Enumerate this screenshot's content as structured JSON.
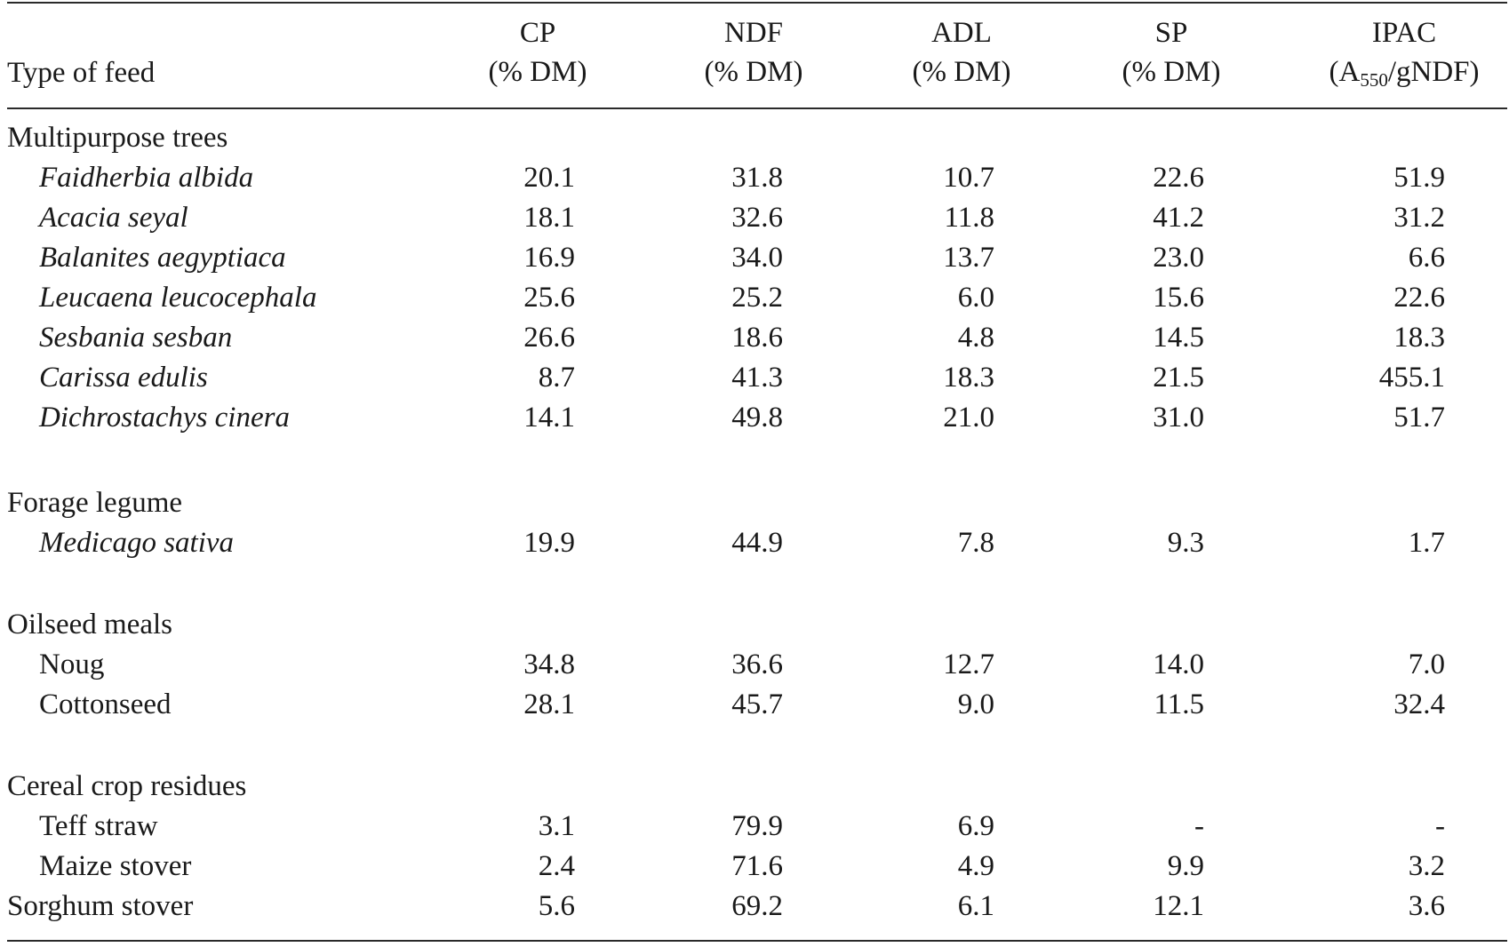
{
  "table": {
    "headers": {
      "type": "Type of feed",
      "cp": {
        "line1": "CP",
        "line2": "(% DM)"
      },
      "ndf": {
        "line1": "NDF",
        "line2": "(% DM)"
      },
      "adl": {
        "line1": "ADL",
        "line2": "(% DM)"
      },
      "sp": {
        "line1": "SP",
        "line2": "(% DM)"
      },
      "ipac": {
        "line1": "IPAC",
        "line2_pre": "(A",
        "line2_sub": "550",
        "line2_post": "/gNDF)"
      }
    },
    "rows": [
      {
        "name": "Multipurpose trees",
        "kind": "group",
        "italic": false,
        "cp": "",
        "ndf": "",
        "adl": "",
        "sp": "",
        "ipac": ""
      },
      {
        "name": "Faidherbia albida",
        "kind": "indent",
        "italic": true,
        "cp": "20.1",
        "ndf": "31.8",
        "adl": "10.7",
        "sp": "22.6",
        "ipac": "51.9"
      },
      {
        "name": "Acacia seyal",
        "kind": "indent",
        "italic": true,
        "cp": "18.1",
        "ndf": "32.6",
        "adl": "11.8",
        "sp": "41.2",
        "ipac": "31.2"
      },
      {
        "name": "Balanites aegyptiaca",
        "kind": "indent",
        "italic": true,
        "cp": "16.9",
        "ndf": "34.0",
        "adl": "13.7",
        "sp": "23.0",
        "ipac": "6.6"
      },
      {
        "name": "Leucaena leucocephala",
        "kind": "indent",
        "italic": true,
        "cp": "25.6",
        "ndf": "25.2",
        "adl": "6.0",
        "sp": "15.6",
        "ipac": "22.6"
      },
      {
        "name": "Sesbania sesban",
        "kind": "indent",
        "italic": true,
        "cp": "26.6",
        "ndf": "18.6",
        "adl": "4.8",
        "sp": "14.5",
        "ipac": "18.3"
      },
      {
        "name": "Carissa edulis",
        "kind": "indent",
        "italic": true,
        "cp": "8.7",
        "ndf": "41.3",
        "adl": "18.3",
        "sp": "21.5",
        "ipac": "455.1"
      },
      {
        "name": "Dichrostachys cinera",
        "kind": "indent",
        "italic": true,
        "cp": "14.1",
        "ndf": "49.8",
        "adl": "21.0",
        "sp": "31.0",
        "ipac": "51.7"
      },
      {
        "name": "Forage legume",
        "kind": "group",
        "italic": false,
        "cp": "",
        "ndf": "",
        "adl": "",
        "sp": "",
        "ipac": ""
      },
      {
        "name": "Medicago sativa",
        "kind": "indent",
        "italic": true,
        "cp": "19.9",
        "ndf": "44.9",
        "adl": "7.8",
        "sp": "9.3",
        "ipac": "1.7"
      },
      {
        "name": "Oilseed meals",
        "kind": "group",
        "italic": false,
        "cp": "",
        "ndf": "",
        "adl": "",
        "sp": "",
        "ipac": ""
      },
      {
        "name": "Noug",
        "kind": "indent",
        "italic": false,
        "cp": "34.8",
        "ndf": "36.6",
        "adl": "12.7",
        "sp": "14.0",
        "ipac": "7.0"
      },
      {
        "name": "Cottonseed",
        "kind": "indent",
        "italic": false,
        "cp": "28.1",
        "ndf": "45.7",
        "adl": "9.0",
        "sp": "11.5",
        "ipac": "32.4"
      },
      {
        "name": "Cereal crop residues",
        "kind": "group",
        "italic": false,
        "cp": "",
        "ndf": "",
        "adl": "",
        "sp": "",
        "ipac": ""
      },
      {
        "name": "Teff straw",
        "kind": "indent",
        "italic": false,
        "cp": "3.1",
        "ndf": "79.9",
        "adl": "6.9",
        "sp": "-",
        "ipac": "-"
      },
      {
        "name": "Maize stover",
        "kind": "indent",
        "italic": false,
        "cp": "2.4",
        "ndf": "71.6",
        "adl": "4.9",
        "sp": "9.9",
        "ipac": "3.2"
      },
      {
        "name": "Sorghum stover",
        "kind": "group",
        "italic": false,
        "cp": "5.6",
        "ndf": "69.2",
        "adl": "6.1",
        "sp": "12.1",
        "ipac": "3.6"
      }
    ]
  }
}
